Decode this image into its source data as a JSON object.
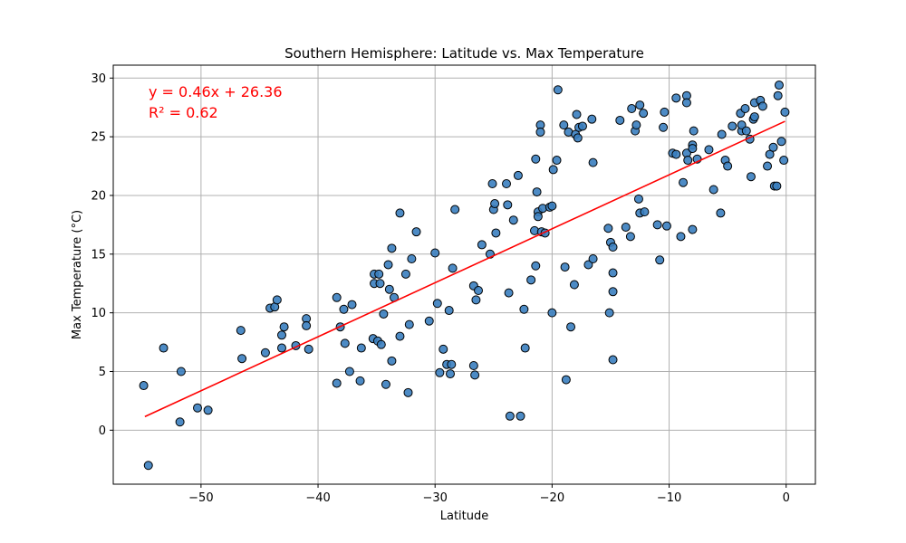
{
  "chart_data": {
    "type": "scatter",
    "title": "Southern Hemisphere: Latitude vs. Max Temperature",
    "xlabel": "Latitude",
    "ylabel": "Max Temperature (°C)",
    "xlim": [
      -57.5,
      2.5
    ],
    "ylim": [
      -4.6,
      31.1
    ],
    "xticks": [
      -50,
      -40,
      -30,
      -20,
      -10,
      0
    ],
    "xtick_labels": [
      "−50",
      "−40",
      "−30",
      "−20",
      "−10",
      "0"
    ],
    "yticks": [
      0,
      5,
      10,
      15,
      20,
      25,
      30
    ],
    "ytick_labels": [
      "0",
      "5",
      "10",
      "15",
      "20",
      "25",
      "30"
    ],
    "grid": true,
    "colors": {
      "point_fill": "#3a7ebf",
      "point_edge": "#000000",
      "line": "#ff0000",
      "annotation": "#ff0000",
      "grid": "#b0b0b0"
    },
    "regression": {
      "slope": 0.46,
      "intercept": 26.36,
      "x_range": [
        -54.8,
        -0.1
      ]
    },
    "annotations": [
      "y = 0.46x + 26.36",
      "R² = 0.62"
    ],
    "points": [
      [
        -54.9,
        3.8
      ],
      [
        -54.5,
        -3.0
      ],
      [
        -53.2,
        7.0
      ],
      [
        -51.7,
        5.0
      ],
      [
        -51.8,
        0.7
      ],
      [
        -50.3,
        1.9
      ],
      [
        -49.4,
        1.7
      ],
      [
        -46.6,
        8.5
      ],
      [
        -46.5,
        6.1
      ],
      [
        -44.5,
        6.6
      ],
      [
        -44.1,
        10.4
      ],
      [
        -43.7,
        10.5
      ],
      [
        -43.5,
        11.1
      ],
      [
        -43.1,
        7.0
      ],
      [
        -43.1,
        8.1
      ],
      [
        -42.9,
        8.8
      ],
      [
        -41.9,
        7.2
      ],
      [
        -41.0,
        9.5
      ],
      [
        -41.0,
        8.9
      ],
      [
        -40.8,
        6.9
      ],
      [
        -38.4,
        11.3
      ],
      [
        -38.4,
        4.0
      ],
      [
        -38.1,
        8.8
      ],
      [
        -37.8,
        10.3
      ],
      [
        -37.7,
        7.4
      ],
      [
        -37.3,
        5.0
      ],
      [
        -37.1,
        10.7
      ],
      [
        -36.3,
        7.0
      ],
      [
        -36.4,
        4.2
      ],
      [
        -35.3,
        7.8
      ],
      [
        -35.2,
        12.5
      ],
      [
        -35.2,
        13.3
      ],
      [
        -34.9,
        7.6
      ],
      [
        -34.8,
        13.3
      ],
      [
        -34.7,
        12.5
      ],
      [
        -34.6,
        7.3
      ],
      [
        -34.4,
        9.9
      ],
      [
        -34.2,
        3.9
      ],
      [
        -34.0,
        14.1
      ],
      [
        -33.9,
        12.0
      ],
      [
        -33.7,
        15.5
      ],
      [
        -33.7,
        5.9
      ],
      [
        -33.5,
        11.3
      ],
      [
        -33.0,
        8.0
      ],
      [
        -33.0,
        18.5
      ],
      [
        -32.5,
        13.3
      ],
      [
        -32.3,
        3.2
      ],
      [
        -32.2,
        9.0
      ],
      [
        -32.0,
        14.6
      ],
      [
        -31.6,
        16.9
      ],
      [
        -30.5,
        9.3
      ],
      [
        -30.0,
        15.1
      ],
      [
        -29.8,
        10.8
      ],
      [
        -29.6,
        4.9
      ],
      [
        -29.3,
        6.9
      ],
      [
        -29.0,
        5.6
      ],
      [
        -28.8,
        10.2
      ],
      [
        -28.6,
        5.6
      ],
      [
        -28.7,
        4.8
      ],
      [
        -28.5,
        13.8
      ],
      [
        -28.3,
        18.8
      ],
      [
        -26.7,
        5.5
      ],
      [
        -26.6,
        4.7
      ],
      [
        -26.7,
        12.3
      ],
      [
        -26.5,
        11.1
      ],
      [
        -26.3,
        11.9
      ],
      [
        -26.0,
        15.8
      ],
      [
        -25.3,
        15.0
      ],
      [
        -25.1,
        21.0
      ],
      [
        -25.0,
        18.8
      ],
      [
        -24.9,
        19.3
      ],
      [
        -24.8,
        16.8
      ],
      [
        -23.9,
        21.0
      ],
      [
        -23.8,
        19.2
      ],
      [
        -23.7,
        11.7
      ],
      [
        -23.6,
        1.2
      ],
      [
        -23.3,
        17.9
      ],
      [
        -22.9,
        21.7
      ],
      [
        -22.7,
        1.2
      ],
      [
        -22.4,
        10.3
      ],
      [
        -22.3,
        7.0
      ],
      [
        -21.8,
        12.8
      ],
      [
        -21.5,
        17.0
      ],
      [
        -21.4,
        23.1
      ],
      [
        -21.4,
        14.0
      ],
      [
        -21.3,
        20.3
      ],
      [
        -21.2,
        18.6
      ],
      [
        -21.2,
        18.2
      ],
      [
        -21.0,
        26.0
      ],
      [
        -21.0,
        25.4
      ],
      [
        -20.9,
        16.9
      ],
      [
        -20.8,
        18.9
      ],
      [
        -20.6,
        16.8
      ],
      [
        -20.2,
        19.0
      ],
      [
        -20.0,
        19.1
      ],
      [
        -19.9,
        22.2
      ],
      [
        -20.0,
        10.0
      ],
      [
        -19.6,
        23.0
      ],
      [
        -19.5,
        29.0
      ],
      [
        -19.0,
        26.0
      ],
      [
        -18.9,
        13.9
      ],
      [
        -18.8,
        4.3
      ],
      [
        -18.6,
        25.4
      ],
      [
        -18.4,
        8.8
      ],
      [
        -18.1,
        12.4
      ],
      [
        -18.0,
        25.2
      ],
      [
        -17.9,
        26.9
      ],
      [
        -17.8,
        24.9
      ],
      [
        -17.7,
        25.8
      ],
      [
        -17.4,
        25.9
      ],
      [
        -16.9,
        14.1
      ],
      [
        -16.6,
        26.5
      ],
      [
        -16.5,
        22.8
      ],
      [
        -16.5,
        14.6
      ],
      [
        -15.2,
        17.2
      ],
      [
        -15.1,
        10.0
      ],
      [
        -15.0,
        16.0
      ],
      [
        -14.8,
        15.6
      ],
      [
        -14.8,
        13.4
      ],
      [
        -14.8,
        11.8
      ],
      [
        -14.8,
        6.0
      ],
      [
        -14.2,
        26.4
      ],
      [
        -13.7,
        17.3
      ],
      [
        -13.3,
        16.5
      ],
      [
        -13.2,
        27.4
      ],
      [
        -12.9,
        25.5
      ],
      [
        -12.8,
        26.0
      ],
      [
        -12.6,
        19.7
      ],
      [
        -12.5,
        27.7
      ],
      [
        -12.5,
        18.5
      ],
      [
        -12.1,
        18.6
      ],
      [
        -12.2,
        27.0
      ],
      [
        -11.0,
        17.5
      ],
      [
        -10.8,
        14.5
      ],
      [
        -10.5,
        25.8
      ],
      [
        -10.4,
        27.1
      ],
      [
        -10.2,
        17.4
      ],
      [
        -9.7,
        23.6
      ],
      [
        -9.4,
        28.3
      ],
      [
        -9.4,
        23.5
      ],
      [
        -9.0,
        16.5
      ],
      [
        -8.8,
        21.1
      ],
      [
        -8.5,
        28.5
      ],
      [
        -8.5,
        23.6
      ],
      [
        -8.5,
        27.9
      ],
      [
        -8.4,
        23.0
      ],
      [
        -8.0,
        24.3
      ],
      [
        -8.0,
        24.0
      ],
      [
        -7.9,
        25.5
      ],
      [
        -8.0,
        17.1
      ],
      [
        -7.6,
        23.1
      ],
      [
        -6.6,
        23.9
      ],
      [
        -6.2,
        20.5
      ],
      [
        -5.6,
        18.5
      ],
      [
        -5.5,
        25.2
      ],
      [
        -5.2,
        23.0
      ],
      [
        -5.0,
        22.5
      ],
      [
        -4.6,
        25.9
      ],
      [
        -3.9,
        27.0
      ],
      [
        -3.8,
        25.5
      ],
      [
        -3.8,
        26.0
      ],
      [
        -3.5,
        27.4
      ],
      [
        -3.4,
        25.5
      ],
      [
        -3.1,
        24.8
      ],
      [
        -3.0,
        21.6
      ],
      [
        -2.8,
        26.5
      ],
      [
        -2.7,
        27.9
      ],
      [
        -2.7,
        26.7
      ],
      [
        -2.2,
        28.1
      ],
      [
        -2.0,
        27.6
      ],
      [
        -1.6,
        22.5
      ],
      [
        -1.4,
        23.5
      ],
      [
        -1.1,
        24.1
      ],
      [
        -1.0,
        20.8
      ],
      [
        -0.8,
        20.8
      ],
      [
        -0.7,
        28.5
      ],
      [
        -0.6,
        29.4
      ],
      [
        -0.4,
        24.6
      ],
      [
        -0.2,
        23.0
      ],
      [
        -0.1,
        27.1
      ]
    ]
  }
}
